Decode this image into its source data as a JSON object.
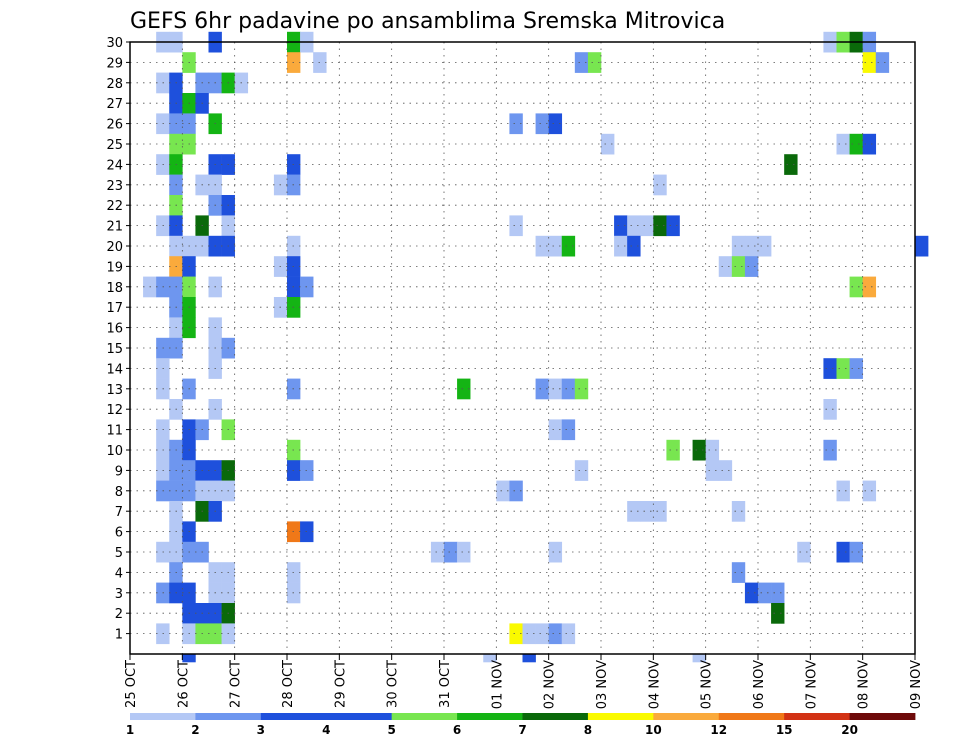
{
  "chart_data": {
    "type": "heatmap",
    "title": "GEFS 6hr padavine po ansamblima Sremska Mitrovica",
    "xlabel": "",
    "ylabel": "",
    "x_ticks": [
      "25 OCT",
      "26 OCT",
      "27 OCT",
      "28 OCT",
      "29 OCT",
      "30 OCT",
      "31 OCT",
      "01 NOV",
      "02 NOV",
      "03 NOV",
      "04 NOV",
      "05 NOV",
      "06 NOV",
      "07 NOV",
      "08 NOV",
      "09 NOV"
    ],
    "x_range_days": [
      0,
      15
    ],
    "y_ticks": [
      1,
      2,
      3,
      4,
      5,
      6,
      7,
      8,
      9,
      10,
      11,
      12,
      13,
      14,
      15,
      16,
      17,
      18,
      19,
      20,
      21,
      22,
      23,
      24,
      25,
      26,
      27,
      28,
      29,
      30
    ],
    "y_range": [
      0,
      30
    ],
    "grid": true,
    "grid_style": "dotted",
    "colorbar": {
      "position": "bottom",
      "labels": [
        "1",
        "2",
        "3",
        "4",
        "5",
        "6",
        "7",
        "8",
        "10",
        "12",
        "15",
        "20"
      ],
      "colors": [
        "#b4c8f5",
        "#6e96ef",
        "#1e50dc",
        "#1e50dc",
        "#78e650",
        "#14b414",
        "#0a690a",
        "#fafa00",
        "#faaa3c",
        "#f07818",
        "#d23214",
        "#6e0a0a"
      ]
    },
    "palette": [
      "#b4c8f5",
      "#6e96ef",
      "#1e50dc",
      "#78e650",
      "#14b414",
      "#0a690a",
      "#fafa00",
      "#faaa3c",
      "#f07818"
    ],
    "cells": [
      [
        30,
        0.5,
        0
      ],
      [
        30,
        0.75,
        0
      ],
      [
        30,
        1.5,
        2
      ],
      [
        30,
        3,
        4
      ],
      [
        30,
        3.25,
        0
      ],
      [
        30,
        13.25,
        0
      ],
      [
        30,
        13.5,
        3
      ],
      [
        30,
        13.75,
        5
      ],
      [
        30,
        14,
        1
      ],
      [
        29,
        1,
        3
      ],
      [
        29,
        3,
        7
      ],
      [
        29,
        3.5,
        0
      ],
      [
        29,
        8.5,
        1
      ],
      [
        29,
        8.75,
        3
      ],
      [
        29,
        14,
        6
      ],
      [
        29,
        14.25,
        1
      ],
      [
        28,
        0.5,
        0
      ],
      [
        28,
        0.75,
        2
      ],
      [
        28,
        1.25,
        1
      ],
      [
        28,
        1.5,
        1
      ],
      [
        28,
        1.75,
        4
      ],
      [
        28,
        2,
        0
      ],
      [
        27,
        0.75,
        2
      ],
      [
        27,
        1,
        4
      ],
      [
        27,
        1.25,
        2
      ],
      [
        26,
        0.5,
        0
      ],
      [
        26,
        0.75,
        1
      ],
      [
        26,
        1,
        1
      ],
      [
        26,
        1.5,
        4
      ],
      [
        26,
        7.25,
        1
      ],
      [
        26,
        7.75,
        1
      ],
      [
        26,
        8,
        2
      ],
      [
        25,
        0.75,
        3
      ],
      [
        25,
        1,
        3
      ],
      [
        25,
        9,
        0
      ],
      [
        25,
        13.5,
        0
      ],
      [
        25,
        13.75,
        4
      ],
      [
        25,
        14,
        2
      ],
      [
        24,
        0.5,
        0
      ],
      [
        24,
        0.75,
        4
      ],
      [
        24,
        1.5,
        2
      ],
      [
        24,
        1.75,
        2
      ],
      [
        24,
        3,
        2
      ],
      [
        24,
        12.5,
        5
      ],
      [
        23,
        0.75,
        1
      ],
      [
        23,
        1.25,
        0
      ],
      [
        23,
        1.5,
        0
      ],
      [
        23,
        2.75,
        0
      ],
      [
        23,
        3,
        1
      ],
      [
        23,
        10,
        0
      ],
      [
        22,
        0.75,
        3
      ],
      [
        22,
        1.5,
        1
      ],
      [
        22,
        1.75,
        2
      ],
      [
        21,
        0.5,
        0
      ],
      [
        21,
        0.75,
        2
      ],
      [
        21,
        1.25,
        5
      ],
      [
        21,
        1.75,
        0
      ],
      [
        21,
        7.25,
        0
      ],
      [
        21,
        9.25,
        2
      ],
      [
        21,
        9.5,
        0
      ],
      [
        21,
        9.75,
        0
      ],
      [
        21,
        10,
        5
      ],
      [
        21,
        10.25,
        2
      ],
      [
        20,
        0.75,
        0
      ],
      [
        20,
        1,
        0
      ],
      [
        20,
        1.25,
        0
      ],
      [
        20,
        1.5,
        2
      ],
      [
        20,
        1.75,
        2
      ],
      [
        20,
        3,
        0
      ],
      [
        20,
        7.75,
        0
      ],
      [
        20,
        8,
        0
      ],
      [
        20,
        8.25,
        4
      ],
      [
        20,
        9.25,
        0
      ],
      [
        20,
        9.5,
        2
      ],
      [
        20,
        11.5,
        0
      ],
      [
        20,
        11.75,
        0
      ],
      [
        20,
        12,
        0
      ],
      [
        20,
        15,
        2
      ],
      [
        19,
        0.75,
        7
      ],
      [
        19,
        1,
        2
      ],
      [
        19,
        2.75,
        0
      ],
      [
        19,
        3,
        2
      ],
      [
        19,
        11.25,
        0
      ],
      [
        19,
        11.5,
        3
      ],
      [
        19,
        11.75,
        1
      ],
      [
        18,
        0.25,
        0
      ],
      [
        18,
        0.5,
        1
      ],
      [
        18,
        0.75,
        1
      ],
      [
        18,
        1,
        3
      ],
      [
        18,
        1.5,
        0
      ],
      [
        18,
        3,
        2
      ],
      [
        18,
        3.25,
        1
      ],
      [
        18,
        13.75,
        3
      ],
      [
        18,
        14,
        7
      ],
      [
        17,
        0.75,
        1
      ],
      [
        17,
        1,
        4
      ],
      [
        17,
        2.75,
        0
      ],
      [
        17,
        3,
        4
      ],
      [
        16,
        0.75,
        0
      ],
      [
        16,
        1,
        4
      ],
      [
        16,
        1.5,
        0
      ],
      [
        15,
        0.5,
        1
      ],
      [
        15,
        0.75,
        1
      ],
      [
        15,
        1.5,
        0
      ],
      [
        15,
        1.75,
        1
      ],
      [
        14,
        0.5,
        0
      ],
      [
        14,
        1.5,
        0
      ],
      [
        14,
        13.25,
        2
      ],
      [
        14,
        13.5,
        3
      ],
      [
        14,
        13.75,
        1
      ],
      [
        13,
        0.5,
        0
      ],
      [
        13,
        1,
        1
      ],
      [
        13,
        3,
        1
      ],
      [
        13,
        6.25,
        4
      ],
      [
        13,
        7.75,
        1
      ],
      [
        13,
        8,
        0
      ],
      [
        13,
        8.25,
        1
      ],
      [
        13,
        8.5,
        3
      ],
      [
        12,
        0.75,
        0
      ],
      [
        12,
        1.5,
        0
      ],
      [
        12,
        13.25,
        0
      ],
      [
        11,
        0.5,
        0
      ],
      [
        11,
        1,
        2
      ],
      [
        11,
        1.25,
        1
      ],
      [
        11,
        1.75,
        3
      ],
      [
        11,
        8,
        0
      ],
      [
        11,
        8.25,
        1
      ],
      [
        10,
        0.5,
        0
      ],
      [
        10,
        0.75,
        1
      ],
      [
        10,
        1,
        2
      ],
      [
        10,
        3,
        3
      ],
      [
        10,
        10.25,
        3
      ],
      [
        10,
        10.75,
        5
      ],
      [
        10,
        11,
        0
      ],
      [
        10,
        13.25,
        1
      ],
      [
        9,
        0.5,
        0
      ],
      [
        9,
        0.75,
        1
      ],
      [
        9,
        1,
        1
      ],
      [
        9,
        1.25,
        2
      ],
      [
        9,
        1.5,
        2
      ],
      [
        9,
        1.75,
        5
      ],
      [
        9,
        3,
        2
      ],
      [
        9,
        3.25,
        1
      ],
      [
        9,
        8.5,
        0
      ],
      [
        9,
        11,
        0
      ],
      [
        9,
        11.25,
        0
      ],
      [
        8,
        0.5,
        1
      ],
      [
        8,
        0.75,
        1
      ],
      [
        8,
        1,
        1
      ],
      [
        8,
        1.25,
        0
      ],
      [
        8,
        1.5,
        0
      ],
      [
        8,
        1.75,
        0
      ],
      [
        8,
        7,
        0
      ],
      [
        8,
        7.25,
        1
      ],
      [
        8,
        13.5,
        0
      ],
      [
        8,
        14,
        0
      ],
      [
        7,
        0.75,
        0
      ],
      [
        7,
        1.25,
        5
      ],
      [
        7,
        1.5,
        2
      ],
      [
        7,
        9.5,
        0
      ],
      [
        7,
        9.75,
        0
      ],
      [
        7,
        10,
        0
      ],
      [
        7,
        11.5,
        0
      ],
      [
        6,
        0.75,
        0
      ],
      [
        6,
        1,
        2
      ],
      [
        6,
        3,
        8
      ],
      [
        6,
        3.25,
        2
      ],
      [
        5,
        0.5,
        0
      ],
      [
        5,
        0.75,
        0
      ],
      [
        5,
        1,
        1
      ],
      [
        5,
        1.25,
        1
      ],
      [
        5,
        5.75,
        0
      ],
      [
        5,
        6,
        1
      ],
      [
        5,
        6.25,
        0
      ],
      [
        5,
        8,
        0
      ],
      [
        5,
        12.75,
        0
      ],
      [
        5,
        13.5,
        2
      ],
      [
        5,
        13.75,
        1
      ],
      [
        4,
        0.75,
        1
      ],
      [
        4,
        1.5,
        0
      ],
      [
        4,
        1.75,
        0
      ],
      [
        4,
        3,
        0
      ],
      [
        4,
        11.5,
        1
      ],
      [
        3,
        0.5,
        1
      ],
      [
        3,
        0.75,
        2
      ],
      [
        3,
        1,
        2
      ],
      [
        3,
        1.5,
        0
      ],
      [
        3,
        1.75,
        0
      ],
      [
        3,
        3,
        0
      ],
      [
        3,
        11.75,
        2
      ],
      [
        3,
        12,
        1
      ],
      [
        3,
        12.25,
        1
      ],
      [
        2,
        1,
        2
      ],
      [
        2,
        1.25,
        2
      ],
      [
        2,
        1.5,
        2
      ],
      [
        2,
        1.75,
        5
      ],
      [
        2,
        12.25,
        5
      ],
      [
        1,
        0.5,
        0
      ],
      [
        1,
        1,
        0
      ],
      [
        1,
        1.25,
        3
      ],
      [
        1,
        1.5,
        3
      ],
      [
        1,
        1.75,
        0
      ],
      [
        1,
        7.25,
        6
      ],
      [
        1,
        7.5,
        0
      ],
      [
        1,
        7.75,
        0
      ],
      [
        1,
        8,
        1
      ],
      [
        1,
        8.25,
        0
      ],
      [
        0,
        1,
        2
      ],
      [
        0,
        6.75,
        0
      ],
      [
        0,
        7.5,
        2
      ],
      [
        0,
        10.75,
        0
      ]
    ]
  }
}
